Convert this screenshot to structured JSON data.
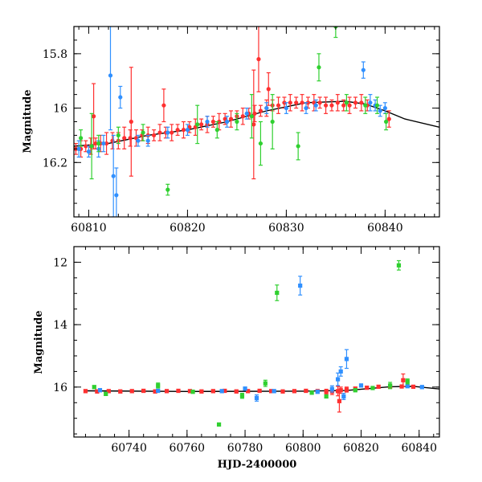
{
  "chart_data": [
    {
      "type": "scatter",
      "panel": "top",
      "title": "",
      "xlabel": "",
      "ylabel": "Magnitude",
      "xlim": [
        60808.5,
        60845.5
      ],
      "ylim": [
        16.4,
        15.7
      ],
      "y_inverted": true,
      "x_ticks": [
        60810,
        60820,
        60830,
        60840
      ],
      "x_tick_labels": [
        "60810",
        "60820",
        "60830",
        "60840"
      ],
      "y_ticks": [
        15.8,
        16,
        16.2
      ],
      "y_tick_labels": [
        "15.8",
        "16",
        "16.2"
      ],
      "grid": false,
      "legend": "none",
      "model_curve": {
        "color": "#000000",
        "x": [
          60808.5,
          60812,
          60816,
          60820,
          60824,
          60828,
          60832,
          60836,
          60838,
          60840,
          60842,
          60845.5
        ],
        "y": [
          16.14,
          16.13,
          16.1,
          16.08,
          16.05,
          16.01,
          15.98,
          15.975,
          15.985,
          16.01,
          16.04,
          16.07
        ]
      },
      "series": [
        {
          "color": "#ff3030",
          "x": [
            60808.7,
            60809.2,
            60809.7,
            60810.2,
            60810.7,
            60811.2,
            60811.8,
            60812.4,
            60813,
            60813.6,
            60814.2,
            60814.8,
            60815.4,
            60816,
            60816.6,
            60817.2,
            60817.8,
            60818.4,
            60819,
            60819.6,
            60820.2,
            60820.8,
            60821.4,
            60822,
            60822.6,
            60823.2,
            60823.8,
            60824.4,
            60825,
            60825.6,
            60826.2,
            60826.8,
            60827.4,
            60828,
            60828.6,
            60829.2,
            60829.8,
            60830.4,
            60831,
            60831.6,
            60832.2,
            60832.8,
            60833.4,
            60834,
            60834.6,
            60835.2,
            60835.8,
            60836.4,
            60837,
            60837.6,
            60838.2,
            60840.4,
            60810.5,
            60814.3,
            60826.7,
            60827.2,
            60817.6,
            60828.2
          ],
          "y": [
            16.15,
            16.15,
            16.14,
            16.14,
            16.13,
            16.13,
            16.13,
            16.12,
            16.12,
            16.11,
            16.11,
            16.11,
            16.1,
            16.1,
            16.1,
            16.09,
            16.09,
            16.09,
            16.08,
            16.08,
            16.07,
            16.07,
            16.06,
            16.06,
            16.05,
            16.05,
            16.04,
            16.04,
            16.03,
            16.03,
            16.02,
            16.02,
            16.01,
            16.0,
            15.99,
            15.99,
            15.98,
            15.98,
            15.98,
            15.98,
            15.98,
            15.98,
            15.98,
            15.99,
            15.99,
            15.98,
            15.99,
            15.99,
            15.98,
            15.98,
            15.99,
            16.04,
            16.03,
            16.05,
            16.06,
            15.82,
            15.99,
            15.93
          ],
          "err": [
            0.02,
            0.03,
            0.02,
            0.03,
            0.02,
            0.03,
            0.04,
            0.03,
            0.03,
            0.04,
            0.03,
            0.03,
            0.02,
            0.03,
            0.02,
            0.03,
            0.02,
            0.03,
            0.02,
            0.03,
            0.02,
            0.03,
            0.02,
            0.03,
            0.02,
            0.03,
            0.02,
            0.03,
            0.02,
            0.03,
            0.02,
            0.03,
            0.02,
            0.03,
            0.02,
            0.03,
            0.02,
            0.03,
            0.02,
            0.03,
            0.02,
            0.03,
            0.02,
            0.03,
            0.02,
            0.03,
            0.02,
            0.03,
            0.02,
            0.03,
            0.02,
            0.03,
            0.12,
            0.2,
            0.2,
            0.12,
            0.06,
            0.06
          ]
        },
        {
          "color": "#3090ff",
          "x": [
            60809,
            60810,
            60811,
            60811.5,
            60812.2,
            60812.5,
            60812.8,
            60813.2,
            60815,
            60816,
            60818,
            60820,
            60822,
            60824,
            60826,
            60828,
            60830,
            60832,
            60833,
            60837.8,
            60838.5,
            60839,
            60839.5,
            60840
          ],
          "y": [
            16.15,
            16.16,
            16.15,
            16.13,
            15.88,
            16.25,
            16.32,
            15.96,
            16.12,
            16.12,
            16.09,
            16.08,
            16.05,
            16.05,
            16.02,
            16.0,
            16.0,
            16.0,
            15.99,
            15.86,
            15.98,
            15.99,
            16.01,
            16.0
          ],
          "err": [
            0.03,
            0.02,
            0.03,
            0.03,
            0.2,
            0.15,
            0.1,
            0.04,
            0.02,
            0.02,
            0.02,
            0.02,
            0.02,
            0.02,
            0.02,
            0.02,
            0.02,
            0.02,
            0.02,
            0.03,
            0.03,
            0.02,
            0.02,
            0.02
          ]
        },
        {
          "color": "#30d030",
          "x": [
            60809.2,
            60810.3,
            60811,
            60813,
            60815.5,
            60818,
            60821,
            60823,
            60825,
            60826.5,
            60827.4,
            60828.6,
            60831.2,
            60833.3,
            60835,
            60836.1,
            60838,
            60839.2,
            60840.1
          ],
          "y": [
            16.11,
            16.14,
            16.13,
            16.1,
            16.09,
            16.3,
            16.06,
            16.08,
            16.05,
            16.03,
            16.13,
            16.05,
            16.14,
            15.85,
            15.7,
            15.98,
            15.99,
            15.99,
            16.05
          ],
          "err": [
            0.03,
            0.12,
            0.03,
            0.03,
            0.03,
            0.02,
            0.07,
            0.03,
            0.03,
            0.08,
            0.08,
            0.1,
            0.05,
            0.05,
            0.04,
            0.03,
            0.03,
            0.03,
            0.03
          ]
        }
      ]
    },
    {
      "type": "scatter",
      "panel": "bottom",
      "title": "",
      "xlabel": "HJD-2400000",
      "ylabel": "Magnitude",
      "xlim": [
        60721,
        60847
      ],
      "ylim": [
        17.6,
        11.5
      ],
      "y_inverted": true,
      "x_ticks": [
        60740,
        60760,
        60780,
        60800,
        60820,
        60840
      ],
      "x_tick_labels": [
        "60740",
        "60760",
        "60780",
        "60800",
        "60820",
        "60840"
      ],
      "y_ticks": [
        12,
        14,
        16
      ],
      "y_tick_labels": [
        "12",
        "14",
        "16"
      ],
      "grid": false,
      "legend": "none",
      "model_curve": {
        "color": "#000000",
        "x": [
          60725,
          60760,
          60800,
          60815,
          60830,
          60838,
          60847
        ],
        "y": [
          16.12,
          16.14,
          16.13,
          16.11,
          15.99,
          15.975,
          16.06
        ]
      },
      "series": [
        {
          "color": "#ff3030",
          "x": [
            60725,
            60729,
            60733,
            60737,
            60741,
            60745,
            60749,
            60753,
            60757,
            60761,
            60765,
            60769,
            60773,
            60777,
            60781,
            60785,
            60789,
            60793,
            60797,
            60801,
            60805,
            60808,
            60810,
            60812,
            60813,
            60815,
            60818,
            60822,
            60826,
            60830,
            60834,
            60838,
            60812.5,
            60834.5
          ],
          "y": [
            16.13,
            16.14,
            16.13,
            16.14,
            16.13,
            16.12,
            16.14,
            16.13,
            16.12,
            16.13,
            16.14,
            16.13,
            16.12,
            16.14,
            16.13,
            16.12,
            16.13,
            16.14,
            16.13,
            16.12,
            16.13,
            16.15,
            16.14,
            16.13,
            16.1,
            16.08,
            16.05,
            16.02,
            15.99,
            15.98,
            15.98,
            15.99,
            16.45,
            15.78
          ],
          "err": [
            0.05,
            0.05,
            0.05,
            0.05,
            0.05,
            0.05,
            0.05,
            0.05,
            0.05,
            0.05,
            0.05,
            0.05,
            0.05,
            0.05,
            0.05,
            0.05,
            0.05,
            0.05,
            0.05,
            0.05,
            0.05,
            0.08,
            0.1,
            0.15,
            0.1,
            0.08,
            0.05,
            0.05,
            0.05,
            0.05,
            0.05,
            0.05,
            0.35,
            0.2
          ]
        },
        {
          "color": "#3090ff",
          "x": [
            60730,
            60750,
            60772,
            60780,
            60784,
            60790,
            60799,
            60805,
            60810,
            60812,
            60813,
            60814,
            60815,
            60820,
            60836,
            60841
          ],
          "y": [
            16.1,
            16.12,
            16.13,
            16.05,
            16.35,
            16.13,
            12.75,
            16.15,
            16.06,
            15.75,
            15.5,
            16.3,
            15.1,
            15.95,
            15.97,
            16.0
          ],
          "err": [
            0.05,
            0.05,
            0.05,
            0.05,
            0.1,
            0.05,
            0.3,
            0.05,
            0.1,
            0.2,
            0.15,
            0.1,
            0.3,
            0.05,
            0.05,
            0.05
          ]
        },
        {
          "color": "#30d030",
          "x": [
            60728,
            60732,
            60750,
            60762,
            60771,
            60779,
            60787,
            60791,
            60803,
            60808,
            60818,
            60824,
            60830,
            60833,
            60836
          ],
          "y": [
            16.0,
            16.22,
            15.95,
            16.15,
            17.2,
            16.28,
            15.88,
            12.98,
            16.18,
            16.3,
            16.1,
            16.03,
            15.95,
            12.1,
            15.82
          ],
          "err": [
            0.05,
            0.05,
            0.08,
            0.05,
            0.05,
            0.08,
            0.1,
            0.25,
            0.05,
            0.05,
            0.05,
            0.05,
            0.1,
            0.15,
            0.08
          ]
        }
      ]
    }
  ]
}
